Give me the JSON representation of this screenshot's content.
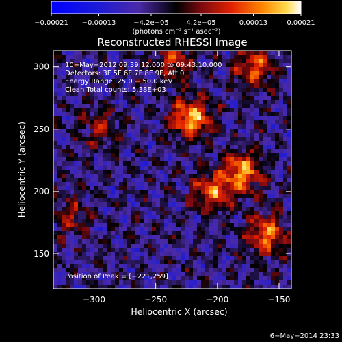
{
  "chart_data": {
    "type": "heatmap",
    "title": "Reconstructed RHESSI Image",
    "xlabel": "Heliocentric X (arcsec)",
    "ylabel": "Heliocentric Y (arcsec)",
    "xlim": [
      -333,
      -140
    ],
    "ylim": [
      122,
      313
    ],
    "xticks": [
      -300,
      -250,
      -200,
      -150
    ],
    "xtick_labels": [
      "−300",
      "−250",
      "−200",
      "−150"
    ],
    "yticks": [
      150,
      200,
      250,
      300
    ],
    "ytick_labels": [
      "150",
      "200",
      "250",
      "300"
    ],
    "colorbar": {
      "ticks": [
        -0.00021,
        -0.00013,
        -4.2e-05,
        4.2e-05,
        0.00013,
        0.00021
      ],
      "tick_labels": [
        "−0.00021",
        "−0.00013",
        "−4.2e−05",
        "4.2e−05",
        "0.00013",
        "0.00021"
      ],
      "units": "(photons cm⁻² s⁻¹ asec⁻²)",
      "range": [
        -0.00021,
        0.00021
      ]
    },
    "annotations": {
      "time_range": "10−May−2012 09:39:12.000 to 09:43:10.000",
      "detectors": "Detectors: 3F 5F 6F 7F 8F 9F, Att 0",
      "energy": "Energy Range: 25.0 − 50.0 keV",
      "clean": "Clean     Total counts: 5.38E+03",
      "peak": "Position of Peak = [−221,259]"
    },
    "peak_position": [
      -221,
      259
    ],
    "hotspots": [
      {
        "x": -221,
        "y": 259,
        "value": 0.00021
      },
      {
        "x": -180,
        "y": 215,
        "value": 0.00019
      },
      {
        "x": -160,
        "y": 165,
        "value": 0.00017
      },
      {
        "x": -205,
        "y": 200,
        "value": 0.00015
      },
      {
        "x": -170,
        "y": 300,
        "value": 0.00014
      },
      {
        "x": -235,
        "y": 305,
        "value": 0.00012
      },
      {
        "x": -295,
        "y": 250,
        "value": 8e-05
      },
      {
        "x": -320,
        "y": 180,
        "value": 9e-05
      }
    ]
  },
  "footer": {
    "date": "6−May−2014 23:33"
  }
}
